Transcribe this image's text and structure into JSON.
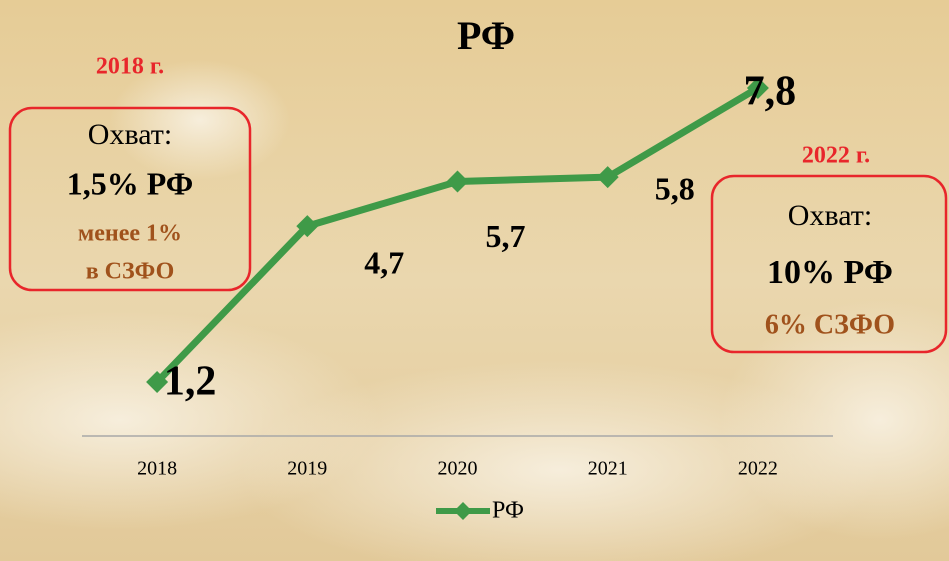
{
  "chart_data": {
    "type": "line",
    "title": "РФ",
    "categories": [
      "2018",
      "2019",
      "2020",
      "2021",
      "2022"
    ],
    "series": [
      {
        "name": "РФ",
        "color": "#3f9a48",
        "values": [
          1.2,
          4.7,
          5.7,
          5.8,
          7.8
        ],
        "value_labels": [
          "1,2",
          "4,7",
          "5,7",
          "5,8",
          "7,8"
        ]
      }
    ],
    "annotations": {
      "left": {
        "year": "2018 г.",
        "label": "Охват:",
        "rf": "1,5% РФ",
        "szfo1": "менее 1%",
        "szfo2": "в СЗФО"
      },
      "right": {
        "year": "2022 г.",
        "label": "Охват:",
        "rf": "10% РФ",
        "szfo": "6% СЗФО"
      }
    },
    "legend": "bottom"
  }
}
